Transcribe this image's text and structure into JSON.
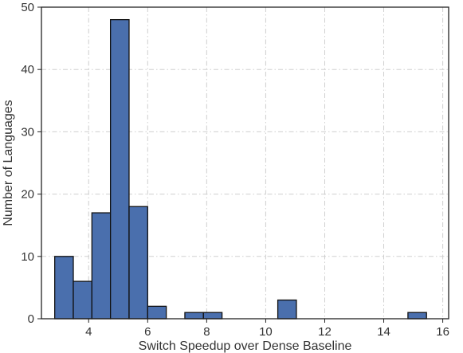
{
  "chart_data": {
    "type": "histogram",
    "xlabel": "Switch Speedup over Dense Baseline",
    "ylabel": "Number of Languages",
    "xlim": [
      2.4,
      16.2
    ],
    "ylim": [
      0,
      50
    ],
    "xticks": [
      4,
      6,
      8,
      10,
      12,
      14,
      16
    ],
    "yticks": [
      0,
      10,
      20,
      30,
      40,
      50
    ],
    "grid": true,
    "bar_color": "#4a6fad",
    "bin_edges": [
      2.85,
      3.48,
      4.11,
      4.74,
      5.37,
      6.0,
      6.63,
      7.26,
      7.89,
      8.52,
      9.15,
      9.78,
      10.41,
      11.04,
      11.67,
      12.3,
      12.93,
      13.56,
      14.19,
      14.82,
      15.45
    ],
    "counts": [
      10,
      6,
      17,
      48,
      18,
      2,
      0,
      1,
      1,
      0,
      0,
      0,
      3,
      0,
      0,
      0,
      0,
      0,
      0,
      1
    ]
  }
}
